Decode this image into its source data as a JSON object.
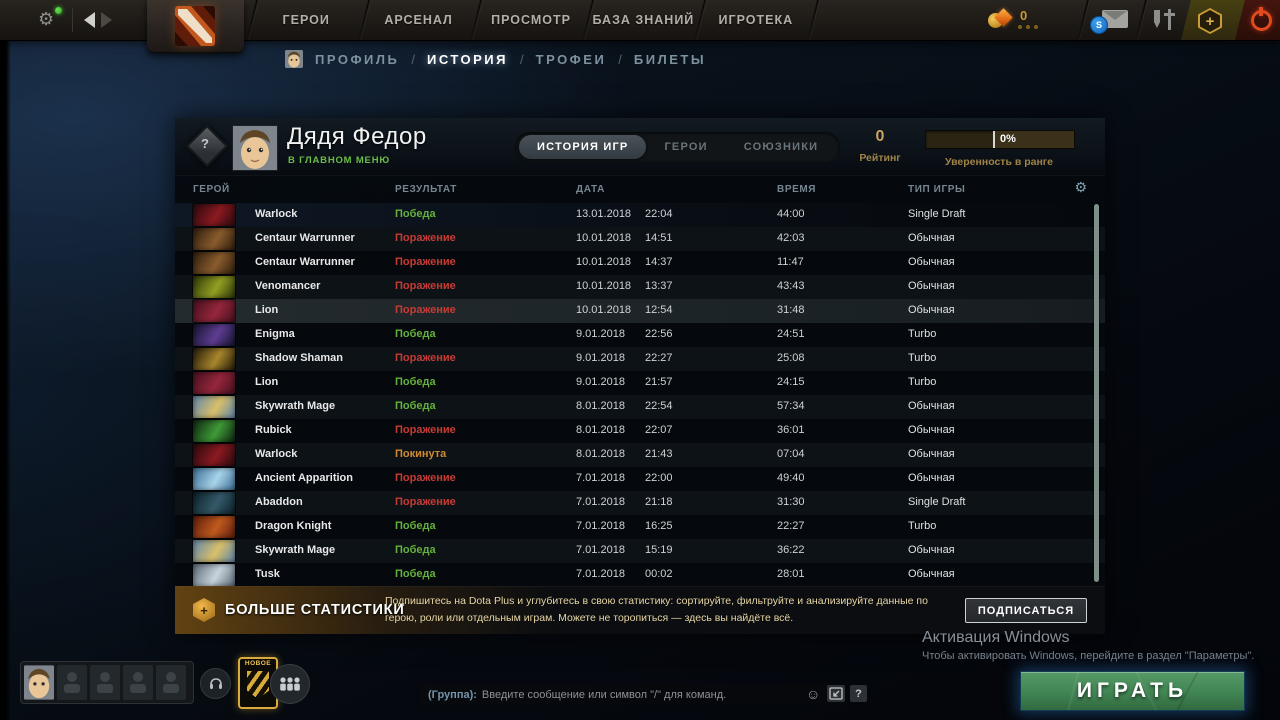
{
  "top_nav": {
    "items": [
      "ГЕРОИ",
      "АРСЕНАЛ",
      "ПРОСМОТР",
      "БАЗА ЗНАНИЙ",
      "ИГРОТЕКА"
    ],
    "shards_count": "0",
    "steam_badge": "S",
    "plus_glyph": "+"
  },
  "breadcrumb": {
    "items": [
      "ПРОФИЛЬ",
      "ИСТОРИЯ",
      "ТРОФЕИ",
      "БИЛЕТЫ"
    ],
    "active": "ИСТОРИЯ",
    "separator": "/"
  },
  "profile": {
    "name": "Дядя Федор",
    "status": "В ГЛАВНОМ МЕНЮ",
    "medal_glyph": "?",
    "tabs": [
      "ИСТОРИЯ ИГР",
      "ГЕРОИ",
      "СОЮЗНИКИ"
    ],
    "active_tab": "ИСТОРИЯ ИГР",
    "rating_value": "0",
    "rating_label": "Рейтинг",
    "confidence_value": "0%",
    "confidence_label": "Уверенность в ранге"
  },
  "table": {
    "columns": [
      "ГЕРОЙ",
      "РЕЗУЛЬТАТ",
      "ДАТА",
      "ВРЕМЯ",
      "ТИП ИГРЫ"
    ],
    "rows": [
      {
        "hero": "Warlock",
        "result": "Победа",
        "result_type": "win",
        "date": "13.01.2018",
        "time": "22:04",
        "duration": "44:00",
        "mode": "Single Draft",
        "portrait": [
          "#2a0a0e",
          "#8a1a20"
        ]
      },
      {
        "hero": "Centaur Warrunner",
        "result": "Поражение",
        "result_type": "loss",
        "date": "10.01.2018",
        "time": "14:51",
        "duration": "42:03",
        "mode": "Обычная",
        "portrait": [
          "#2e1d0e",
          "#8a5c2c"
        ]
      },
      {
        "hero": "Centaur Warrunner",
        "result": "Поражение",
        "result_type": "loss",
        "date": "10.01.2018",
        "time": "14:37",
        "duration": "11:47",
        "mode": "Обычная",
        "portrait": [
          "#2e1d0e",
          "#8a5c2c"
        ]
      },
      {
        "hero": "Venomancer",
        "result": "Поражение",
        "result_type": "loss",
        "date": "10.01.2018",
        "time": "13:37",
        "duration": "43:43",
        "mode": "Обычная",
        "portrait": [
          "#2c3507",
          "#93a023"
        ]
      },
      {
        "hero": "Lion",
        "result": "Поражение",
        "result_type": "loss",
        "date": "10.01.2018",
        "time": "12:54",
        "duration": "31:48",
        "mode": "Обычная",
        "portrait": [
          "#47101f",
          "#95263c"
        ]
      },
      {
        "hero": "Enigma",
        "result": "Победа",
        "result_type": "win",
        "date": "9.01.2018",
        "time": "22:56",
        "duration": "24:51",
        "mode": "Turbo",
        "portrait": [
          "#13132e",
          "#5e3d92"
        ]
      },
      {
        "hero": "Shadow Shaman",
        "result": "Поражение",
        "result_type": "loss",
        "date": "9.01.2018",
        "time": "22:27",
        "duration": "25:08",
        "mode": "Turbo",
        "portrait": [
          "#221a0a",
          "#a8862c"
        ]
      },
      {
        "hero": "Lion",
        "result": "Победа",
        "result_type": "win",
        "date": "9.01.2018",
        "time": "21:57",
        "duration": "24:15",
        "mode": "Turbo",
        "portrait": [
          "#47101f",
          "#95263c"
        ]
      },
      {
        "hero": "Skywrath Mage",
        "result": "Победа",
        "result_type": "win",
        "date": "8.01.2018",
        "time": "22:54",
        "duration": "57:34",
        "mode": "Обычная",
        "portrait": [
          "#5f86ad",
          "#d9c06a"
        ]
      },
      {
        "hero": "Rubick",
        "result": "Поражение",
        "result_type": "loss",
        "date": "8.01.2018",
        "time": "22:07",
        "duration": "36:01",
        "mode": "Обычная",
        "portrait": [
          "#0c2410",
          "#3f9a37"
        ]
      },
      {
        "hero": "Warlock",
        "result": "Покинута",
        "result_type": "abandon",
        "date": "8.01.2018",
        "time": "21:43",
        "duration": "07:04",
        "mode": "Обычная",
        "portrait": [
          "#2a0a0e",
          "#8a1a20"
        ]
      },
      {
        "hero": "Ancient Apparition",
        "result": "Поражение",
        "result_type": "loss",
        "date": "7.01.2018",
        "time": "22:00",
        "duration": "49:40",
        "mode": "Обычная",
        "portrait": [
          "#3c6e96",
          "#a8d4ea"
        ]
      },
      {
        "hero": "Abaddon",
        "result": "Поражение",
        "result_type": "loss",
        "date": "7.01.2018",
        "time": "21:18",
        "duration": "31:30",
        "mode": "Single Draft",
        "portrait": [
          "#0a2026",
          "#35596a"
        ]
      },
      {
        "hero": "Dragon Knight",
        "result": "Победа",
        "result_type": "win",
        "date": "7.01.2018",
        "time": "16:25",
        "duration": "22:27",
        "mode": "Turbo",
        "portrait": [
          "#5e1c0c",
          "#c05a1e"
        ]
      },
      {
        "hero": "Skywrath Mage",
        "result": "Победа",
        "result_type": "win",
        "date": "7.01.2018",
        "time": "15:19",
        "duration": "36:22",
        "mode": "Обычная",
        "portrait": [
          "#5f86ad",
          "#d9c06a"
        ]
      },
      {
        "hero": "Tusk",
        "result": "Победа",
        "result_type": "win",
        "date": "7.01.2018",
        "time": "00:02",
        "duration": "28:01",
        "mode": "Обычная",
        "portrait": [
          "#5a6a78",
          "#c8d4dc"
        ]
      }
    ]
  },
  "banner": {
    "title": "БОЛЬШЕ СТАТИСТИКИ",
    "description": "Подпишитесь на Dota Plus и углубитесь в свою статистику: сортируйте, фильтруйте и анализируйте данные по герою, роли или отдельным играм. Можете не торопиться — здесь вы найдёте всё.",
    "button": "ПОДПИСАТЬСЯ",
    "plus_glyph": "+"
  },
  "footer": {
    "new_badge": "НОВОЕ",
    "chat_prefix": "(Группа):",
    "chat_placeholder": "Введите сообщение или символ \"/\" для команд.",
    "smiley_glyph": "☺",
    "help_label": "?",
    "play_button": "ИГРАТЬ"
  },
  "watermark": {
    "line1": "Активация Windows",
    "line2": "Чтобы активировать Windows, перейдите в раздел \"Параметры\"."
  },
  "colors": {
    "win": "#64b03c",
    "loss": "#c73b35",
    "abandon": "#d08a2e",
    "gold": "#c8a360",
    "play_green": "#418553",
    "status_online": "#69bd47"
  }
}
